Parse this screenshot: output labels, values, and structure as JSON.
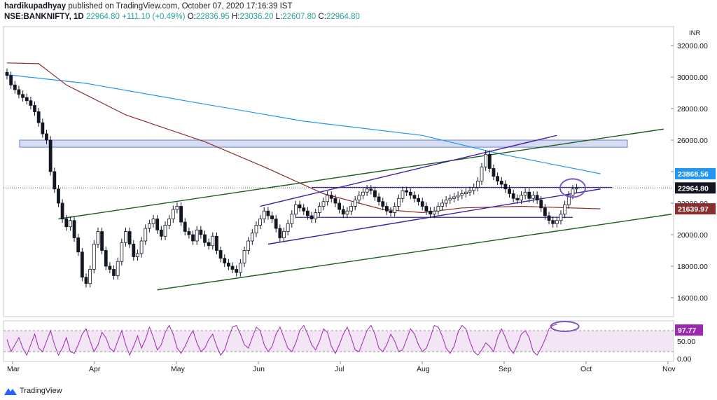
{
  "header": {
    "author": "hardikupadhyay",
    "published": "published on TradingView.com, October 07, 2020 17:16:39 IST",
    "symbol": "NSE:BANKNIFTY, 1D",
    "last": "22964.80",
    "change": "+111.10 (+0.49%)",
    "open_label": "O:",
    "open": "22836.95",
    "high_label": "H:",
    "high": "23036.20",
    "low_label": "L:",
    "low": "22607.80",
    "close_label": "C:",
    "close": "22964.80"
  },
  "footer": {
    "brand": "TradingView"
  },
  "colors": {
    "up": "#ffffff",
    "down": "#131722",
    "ema_slow": "#2196f3",
    "ema_fast": "#8b2e2e",
    "trend_green": "#1b5e20",
    "channel_purple": "#3f1fa8",
    "rsi_line": "#9c27b0",
    "rsi_fill": "#f3e5f5",
    "zone_fill": "#d7dcf3",
    "circle": "#7e57c2"
  },
  "chart_data": {
    "type": "candlestick",
    "currency": "INR",
    "y_ticks": [
      16000,
      18000,
      20000,
      22000,
      24000,
      26000,
      28000,
      30000,
      32000
    ],
    "y_tick_labels": [
      "16000.00",
      "18000.00",
      "20000.00",
      "22000.00",
      "24000.00",
      "26000.00",
      "28000.00",
      "30000.00",
      "32000.00"
    ],
    "ylim": [
      14800,
      33200
    ],
    "x_labels": [
      "Mar",
      "Apr",
      "May",
      "Jun",
      "Jul",
      "Aug",
      "Sep",
      "Oct",
      "Nov"
    ],
    "price_badges": [
      {
        "value": 23868.56,
        "label": "23868.56",
        "color": "#2196f3"
      },
      {
        "value": 22964.8,
        "label": "22964.80",
        "color": "#131722"
      },
      {
        "value": 21639.97,
        "label": "21639.97",
        "color": "#8b2e2e"
      }
    ],
    "closes": [
      30100,
      29500,
      29200,
      28900,
      28700,
      28500,
      28200,
      27800,
      27100,
      26400,
      26000,
      24000,
      22900,
      22000,
      21000,
      20500,
      20900,
      19800,
      18900,
      17300,
      16900,
      17800,
      19400,
      20200,
      19000,
      18000,
      17800,
      17400,
      18300,
      19500,
      20200,
      19400,
      18600,
      18800,
      19600,
      20400,
      20700,
      21000,
      20300,
      19900,
      20600,
      21000,
      21600,
      21800,
      20800,
      20200,
      20000,
      19600,
      20300,
      20000,
      19500,
      19300,
      19900,
      19000,
      18500,
      18200,
      18000,
      17800,
      17600,
      18200,
      19000,
      19600,
      20100,
      20600,
      21000,
      21500,
      21200,
      21000,
      20400,
      19800,
      20200,
      20700,
      21300,
      21900,
      21700,
      21500,
      21200,
      21000,
      21400,
      21800,
      22100,
      22500,
      22300,
      22000,
      21600,
      21300,
      21500,
      21800,
      22200,
      22500,
      22700,
      22900,
      22800,
      22400,
      22100,
      21800,
      21500,
      21400,
      21800,
      22300,
      22800,
      22700,
      22500,
      22300,
      22100,
      21800,
      21500,
      21300,
      21500,
      21800,
      22000,
      22200,
      22300,
      22400,
      22500,
      22600,
      22700,
      22800,
      23000,
      23400,
      24300,
      25100,
      24200,
      23700,
      23400,
      23200,
      22900,
      22600,
      22300,
      22200,
      22500,
      22700,
      22300,
      22500,
      22200,
      21700,
      21200,
      20900,
      20700,
      20900,
      21300,
      21900,
      22500,
      22900,
      22965
    ],
    "ema_slow": [
      [
        0,
        30150
      ],
      [
        20,
        29600
      ],
      [
        45,
        28500
      ],
      [
        75,
        27200
      ],
      [
        105,
        26300
      ],
      [
        125,
        25100
      ],
      [
        150,
        23868
      ]
    ],
    "ema_fast": [
      [
        0,
        30900
      ],
      [
        8,
        30850
      ],
      [
        15,
        29500
      ],
      [
        30,
        27600
      ],
      [
        50,
        25900
      ],
      [
        65,
        24300
      ],
      [
        80,
        22600
      ],
      [
        95,
        21600
      ],
      [
        105,
        21400
      ],
      [
        115,
        21700
      ],
      [
        130,
        21800
      ],
      [
        150,
        21640
      ]
    ],
    "rsi": {
      "value": 97.77,
      "value_label": "97.77",
      "ticks": [
        "50.00",
        "0.00"
      ],
      "levels": [
        80,
        20
      ],
      "values": [
        55,
        20,
        40,
        60,
        30,
        10,
        40,
        70,
        30,
        20,
        50,
        80,
        40,
        10,
        30,
        60,
        20,
        15,
        40,
        70,
        85,
        50,
        20,
        40,
        75,
        60,
        30,
        20,
        50,
        80,
        40,
        10,
        35,
        65,
        30,
        55,
        90,
        60,
        25,
        40,
        75,
        95,
        70,
        30,
        15,
        35,
        60,
        80,
        45,
        20,
        30,
        55,
        70,
        35,
        10,
        25,
        60,
        90,
        95,
        70,
        40,
        30,
        60,
        90,
        80,
        40,
        20,
        35,
        70,
        90,
        60,
        30,
        20,
        45,
        80,
        95,
        70,
        40,
        25,
        50,
        85,
        75,
        35,
        15,
        40,
        70,
        90,
        60,
        25,
        20,
        50,
        80,
        95,
        70,
        30,
        20,
        40,
        70,
        50,
        20,
        25,
        55,
        85,
        70,
        40,
        20,
        30,
        60,
        95,
        90,
        65,
        30,
        15,
        35,
        75,
        95,
        85,
        50,
        20,
        10,
        25,
        45,
        35,
        20,
        60,
        85,
        60,
        30,
        15,
        40,
        70,
        80,
        60,
        20,
        10,
        30,
        55,
        85,
        95,
        97.77
      ]
    },
    "annotations": [
      "support-resistance-zone",
      "rising-channel-green",
      "rising-channel-purple",
      "horizontal-levels",
      "breakout-circle"
    ]
  }
}
